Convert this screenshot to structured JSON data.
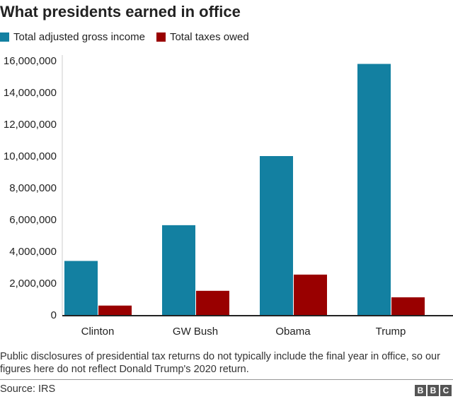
{
  "chart_data": {
    "type": "bar",
    "title": "What presidents earned in office",
    "categories": [
      "Clinton",
      "GW Bush",
      "Obama",
      "Trump"
    ],
    "series": [
      {
        "name": "Total adjusted gross income",
        "color": "#1380a1",
        "values": [
          3400000,
          5650000,
          10000000,
          15800000
        ]
      },
      {
        "name": "Total taxes owed",
        "color": "#990000",
        "values": [
          590000,
          1520000,
          2540000,
          1110000
        ]
      }
    ],
    "ylim": [
      0,
      16000000
    ],
    "yticks": [
      "0",
      "2,000,000",
      "4,000,000",
      "6,000,000",
      "8,000,000",
      "10,000,000",
      "12,000,000",
      "14,000,000",
      "16,000,000"
    ],
    "grid": false,
    "legend": "top-left"
  },
  "note": "Public disclosures of presidential tax returns do not typically include the final year in office, so our figures here do not reflect Donald Trump's 2020 return.",
  "source": "Source: IRS",
  "logo": "BBC"
}
